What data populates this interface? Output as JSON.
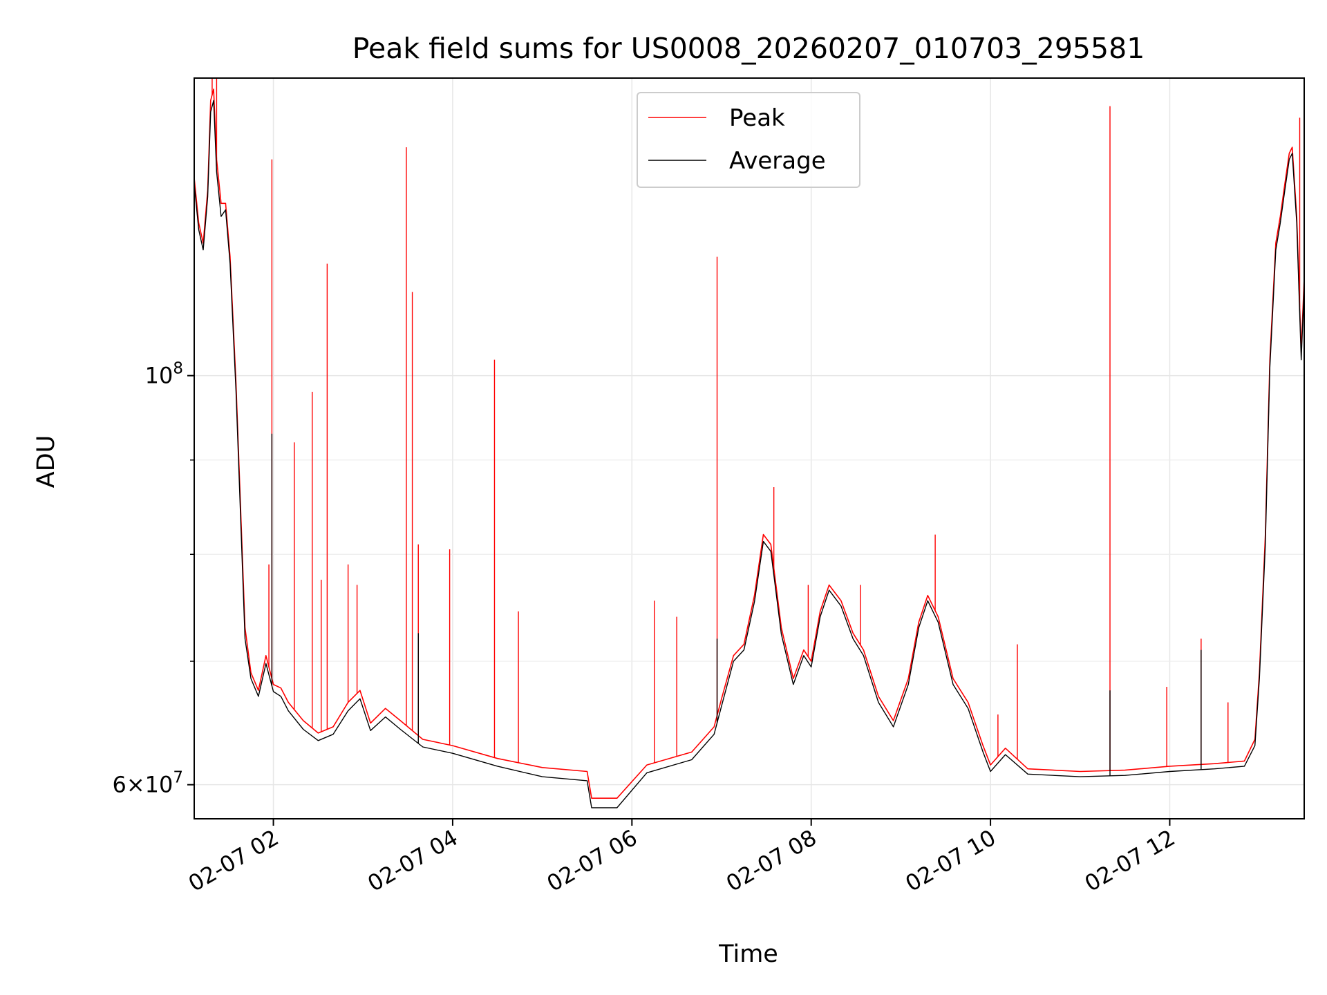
{
  "chart_data": {
    "type": "line",
    "title": "Peak field sums for US0008_20260207_010703_295581",
    "xlabel": "Time",
    "ylabel": "ADU",
    "x_axis": {
      "type": "time",
      "range": [
        "2026-02-07T01:07",
        "2026-02-07T13:30"
      ],
      "ticks": [
        {
          "t": "2026-02-07T02:00",
          "label": "02-07 02"
        },
        {
          "t": "2026-02-07T04:00",
          "label": "02-07 04"
        },
        {
          "t": "2026-02-07T06:00",
          "label": "02-07 06"
        },
        {
          "t": "2026-02-07T08:00",
          "label": "02-07 08"
        },
        {
          "t": "2026-02-07T10:00",
          "label": "02-07 10"
        },
        {
          "t": "2026-02-07T12:00",
          "label": "02-07 12"
        }
      ]
    },
    "y_axis": {
      "scale": "log",
      "range": [
        57500000,
        145000000
      ],
      "major_ticks": [
        {
          "v": 60000000,
          "mantissa": "6×10",
          "exp": "7"
        },
        {
          "v": 100000000,
          "mantissa": "10",
          "exp": "8"
        }
      ],
      "minor_ticks": [
        70000000,
        80000000,
        90000000
      ]
    },
    "grid": true,
    "legend": {
      "placement": "upper-center"
    },
    "series": [
      {
        "name": "Peak",
        "color": "#ff0000",
        "points": [
          [
            "2026-02-07T01:07",
            128000000
          ],
          [
            "2026-02-07T01:10",
            121000000
          ],
          [
            "2026-02-07T01:13",
            118000000
          ],
          [
            "2026-02-07T01:16",
            126000000
          ],
          [
            "2026-02-07T01:18",
            141000000
          ],
          [
            "2026-02-07T01:20",
            143000000
          ],
          [
            "2026-02-07T01:22",
            131000000
          ],
          [
            "2026-02-07T01:25",
            124000000
          ],
          [
            "2026-02-07T01:28",
            124000000
          ],
          [
            "2026-02-07T01:31",
            116000000
          ],
          [
            "2026-02-07T01:35",
            99000000
          ],
          [
            "2026-02-07T01:38",
            85000000
          ],
          [
            "2026-02-07T01:41",
            73000000
          ],
          [
            "2026-02-07T01:45",
            69000000
          ],
          [
            "2026-02-07T01:50",
            67500000
          ],
          [
            "2026-02-07T01:55",
            70500000
          ],
          [
            "2026-02-07T02:00",
            68000000
          ],
          [
            "2026-02-07T02:05",
            67700000
          ],
          [
            "2026-02-07T02:10",
            66500000
          ],
          [
            "2026-02-07T02:20",
            65000000
          ],
          [
            "2026-02-07T02:30",
            64000000
          ],
          [
            "2026-02-07T02:40",
            64500000
          ],
          [
            "2026-02-07T02:50",
            66500000
          ],
          [
            "2026-02-07T02:58",
            67500000
          ],
          [
            "2026-02-07T03:05",
            64800000
          ],
          [
            "2026-02-07T03:15",
            66000000
          ],
          [
            "2026-02-07T03:25",
            65000000
          ],
          [
            "2026-02-07T03:40",
            63500000
          ],
          [
            "2026-02-07T04:00",
            63000000
          ],
          [
            "2026-02-07T04:30",
            62000000
          ],
          [
            "2026-02-07T05:00",
            61300000
          ],
          [
            "2026-02-07T05:30",
            61000000
          ],
          [
            "2026-02-07T05:33",
            59000000
          ],
          [
            "2026-02-07T05:50",
            59000000
          ],
          [
            "2026-02-07T06:10",
            61500000
          ],
          [
            "2026-02-07T06:40",
            62500000
          ],
          [
            "2026-02-07T06:55",
            64500000
          ],
          [
            "2026-02-07T07:00",
            66800000
          ],
          [
            "2026-02-07T07:08",
            70500000
          ],
          [
            "2026-02-07T07:15",
            71500000
          ],
          [
            "2026-02-07T07:22",
            76000000
          ],
          [
            "2026-02-07T07:28",
            82000000
          ],
          [
            "2026-02-07T07:33",
            81000000
          ],
          [
            "2026-02-07T07:40",
            73000000
          ],
          [
            "2026-02-07T07:48",
            68500000
          ],
          [
            "2026-02-07T07:55",
            71000000
          ],
          [
            "2026-02-07T08:00",
            70000000
          ],
          [
            "2026-02-07T08:06",
            74500000
          ],
          [
            "2026-02-07T08:12",
            77000000
          ],
          [
            "2026-02-07T08:20",
            75500000
          ],
          [
            "2026-02-07T08:28",
            72500000
          ],
          [
            "2026-02-07T08:35",
            71000000
          ],
          [
            "2026-02-07T08:45",
            67000000
          ],
          [
            "2026-02-07T08:55",
            65000000
          ],
          [
            "2026-02-07T09:05",
            68500000
          ],
          [
            "2026-02-07T09:12",
            73500000
          ],
          [
            "2026-02-07T09:18",
            76000000
          ],
          [
            "2026-02-07T09:25",
            74000000
          ],
          [
            "2026-02-07T09:35",
            68500000
          ],
          [
            "2026-02-07T09:45",
            66500000
          ],
          [
            "2026-02-07T09:55",
            63000000
          ],
          [
            "2026-02-07T10:00",
            61500000
          ],
          [
            "2026-02-07T10:10",
            62800000
          ],
          [
            "2026-02-07T10:25",
            61200000
          ],
          [
            "2026-02-07T11:00",
            61000000
          ],
          [
            "2026-02-07T11:30",
            61100000
          ],
          [
            "2026-02-07T12:00",
            61400000
          ],
          [
            "2026-02-07T12:30",
            61600000
          ],
          [
            "2026-02-07T12:50",
            61800000
          ],
          [
            "2026-02-07T12:57",
            63500000
          ],
          [
            "2026-02-07T13:00",
            69000000
          ],
          [
            "2026-02-07T13:04",
            82000000
          ],
          [
            "2026-02-07T13:07",
            102000000
          ],
          [
            "2026-02-07T13:11",
            118000000
          ],
          [
            "2026-02-07T13:14",
            122000000
          ],
          [
            "2026-02-07T13:17",
            127000000
          ],
          [
            "2026-02-07T13:20",
            132000000
          ],
          [
            "2026-02-07T13:22",
            133000000
          ],
          [
            "2026-02-07T13:25",
            122000000
          ],
          [
            "2026-02-07T13:28",
            103000000
          ],
          [
            "2026-02-07T13:30",
            113000000
          ]
        ],
        "spikes": [
          [
            "2026-02-07T01:19",
            145000000
          ],
          [
            "2026-02-07T01:22",
            145000000
          ],
          [
            "2026-02-07T01:57",
            79000000
          ],
          [
            "2026-02-07T01:59",
            131000000
          ],
          [
            "2026-02-07T02:14",
            92000000
          ],
          [
            "2026-02-07T02:26",
            98000000
          ],
          [
            "2026-02-07T02:32",
            77500000
          ],
          [
            "2026-02-07T02:36",
            115000000
          ],
          [
            "2026-02-07T02:50",
            79000000
          ],
          [
            "2026-02-07T02:56",
            77000000
          ],
          [
            "2026-02-07T03:29",
            133000000
          ],
          [
            "2026-02-07T03:33",
            111000000
          ],
          [
            "2026-02-07T03:37",
            81000000
          ],
          [
            "2026-02-07T03:58",
            80500000
          ],
          [
            "2026-02-07T04:28",
            102000000
          ],
          [
            "2026-02-07T04:44",
            74500000
          ],
          [
            "2026-02-07T06:15",
            75500000
          ],
          [
            "2026-02-07T06:30",
            74000000
          ],
          [
            "2026-02-07T06:57",
            116000000
          ],
          [
            "2026-02-07T07:35",
            87000000
          ],
          [
            "2026-02-07T07:58",
            77000000
          ],
          [
            "2026-02-07T08:33",
            77000000
          ],
          [
            "2026-02-07T09:23",
            82000000
          ],
          [
            "2026-02-07T10:05",
            65500000
          ],
          [
            "2026-02-07T10:18",
            71500000
          ],
          [
            "2026-02-07T11:20",
            140000000
          ],
          [
            "2026-02-07T11:58",
            67800000
          ],
          [
            "2026-02-07T12:21",
            72000000
          ],
          [
            "2026-02-07T12:39",
            66500000
          ],
          [
            "2026-02-07T13:27",
            138000000
          ]
        ]
      },
      {
        "name": "Average",
        "color": "#000000",
        "points": [
          [
            "2026-02-07T01:07",
            127000000
          ],
          [
            "2026-02-07T01:10",
            120000000
          ],
          [
            "2026-02-07T01:13",
            117000000
          ],
          [
            "2026-02-07T01:16",
            125000000
          ],
          [
            "2026-02-07T01:18",
            139000000
          ],
          [
            "2026-02-07T01:20",
            141000000
          ],
          [
            "2026-02-07T01:22",
            129000000
          ],
          [
            "2026-02-07T01:25",
            122000000
          ],
          [
            "2026-02-07T01:28",
            123000000
          ],
          [
            "2026-02-07T01:31",
            115000000
          ],
          [
            "2026-02-07T01:35",
            98000000
          ],
          [
            "2026-02-07T01:38",
            84000000
          ],
          [
            "2026-02-07T01:41",
            72000000
          ],
          [
            "2026-02-07T01:45",
            68500000
          ],
          [
            "2026-02-07T01:50",
            67000000
          ],
          [
            "2026-02-07T01:55",
            69800000
          ],
          [
            "2026-02-07T02:00",
            67400000
          ],
          [
            "2026-02-07T02:05",
            67000000
          ],
          [
            "2026-02-07T02:10",
            65800000
          ],
          [
            "2026-02-07T02:20",
            64300000
          ],
          [
            "2026-02-07T02:30",
            63400000
          ],
          [
            "2026-02-07T02:40",
            63900000
          ],
          [
            "2026-02-07T02:50",
            65800000
          ],
          [
            "2026-02-07T02:58",
            66800000
          ],
          [
            "2026-02-07T03:05",
            64200000
          ],
          [
            "2026-02-07T03:15",
            65300000
          ],
          [
            "2026-02-07T03:25",
            64300000
          ],
          [
            "2026-02-07T03:40",
            62900000
          ],
          [
            "2026-02-07T04:00",
            62400000
          ],
          [
            "2026-02-07T04:30",
            61400000
          ],
          [
            "2026-02-07T05:00",
            60600000
          ],
          [
            "2026-02-07T05:30",
            60300000
          ],
          [
            "2026-02-07T05:33",
            58300000
          ],
          [
            "2026-02-07T05:50",
            58300000
          ],
          [
            "2026-02-07T06:10",
            60900000
          ],
          [
            "2026-02-07T06:40",
            61900000
          ],
          [
            "2026-02-07T06:55",
            63900000
          ],
          [
            "2026-02-07T07:00",
            66200000
          ],
          [
            "2026-02-07T07:08",
            70000000
          ],
          [
            "2026-02-07T07:15",
            71000000
          ],
          [
            "2026-02-07T07:22",
            75400000
          ],
          [
            "2026-02-07T07:28",
            81300000
          ],
          [
            "2026-02-07T07:33",
            80300000
          ],
          [
            "2026-02-07T07:40",
            72400000
          ],
          [
            "2026-02-07T07:48",
            68000000
          ],
          [
            "2026-02-07T07:55",
            70500000
          ],
          [
            "2026-02-07T08:00",
            69500000
          ],
          [
            "2026-02-07T08:06",
            74000000
          ],
          [
            "2026-02-07T08:12",
            76500000
          ],
          [
            "2026-02-07T08:20",
            75000000
          ],
          [
            "2026-02-07T08:28",
            72000000
          ],
          [
            "2026-02-07T08:35",
            70500000
          ],
          [
            "2026-02-07T08:45",
            66500000
          ],
          [
            "2026-02-07T08:55",
            64500000
          ],
          [
            "2026-02-07T09:05",
            68000000
          ],
          [
            "2026-02-07T09:12",
            73000000
          ],
          [
            "2026-02-07T09:18",
            75500000
          ],
          [
            "2026-02-07T09:25",
            73500000
          ],
          [
            "2026-02-07T09:35",
            68000000
          ],
          [
            "2026-02-07T09:45",
            66000000
          ],
          [
            "2026-02-07T09:55",
            62500000
          ],
          [
            "2026-02-07T10:00",
            61000000
          ],
          [
            "2026-02-07T10:10",
            62300000
          ],
          [
            "2026-02-07T10:25",
            60800000
          ],
          [
            "2026-02-07T11:00",
            60600000
          ],
          [
            "2026-02-07T11:30",
            60700000
          ],
          [
            "2026-02-07T12:00",
            61000000
          ],
          [
            "2026-02-07T12:30",
            61200000
          ],
          [
            "2026-02-07T12:50",
            61400000
          ],
          [
            "2026-02-07T12:57",
            63000000
          ],
          [
            "2026-02-07T13:00",
            68500000
          ],
          [
            "2026-02-07T13:04",
            81000000
          ],
          [
            "2026-02-07T13:07",
            101000000
          ],
          [
            "2026-02-07T13:11",
            117000000
          ],
          [
            "2026-02-07T13:14",
            121000000
          ],
          [
            "2026-02-07T13:17",
            126000000
          ],
          [
            "2026-02-07T13:20",
            131000000
          ],
          [
            "2026-02-07T13:22",
            132000000
          ],
          [
            "2026-02-07T13:25",
            121000000
          ],
          [
            "2026-02-07T13:28",
            102000000
          ],
          [
            "2026-02-07T13:30",
            112000000
          ]
        ],
        "spikes": [
          [
            "2026-02-07T01:59",
            93000000
          ],
          [
            "2026-02-07T03:37",
            72500000
          ],
          [
            "2026-02-07T06:57",
            72000000
          ],
          [
            "2026-02-07T11:20",
            67500000
          ],
          [
            "2026-02-07T12:21",
            71000000
          ]
        ]
      }
    ]
  }
}
